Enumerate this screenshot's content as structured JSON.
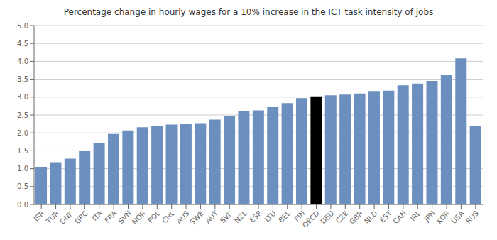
{
  "chart_data": {
    "type": "bar",
    "title": "Percentage change in hourly wages for a 10% increase in the ICT task intensity of jobs",
    "categories": [
      "ISR",
      "TUR",
      "DNK",
      "GRC",
      "ITA",
      "FRA",
      "SVN",
      "NOR",
      "POL",
      "CHL",
      "AUS",
      "SWE",
      "AUT",
      "SVK",
      "NZL",
      "ESP",
      "LTU",
      "BEL",
      "FIN",
      "OECD",
      "DEU",
      "CZE",
      "GBR",
      "NLD",
      "EST",
      "CAN",
      "IRL",
      "JPN",
      "KOR",
      "USA",
      "RUS"
    ],
    "values": [
      1.05,
      1.18,
      1.28,
      1.5,
      1.72,
      1.97,
      2.07,
      2.16,
      2.2,
      2.23,
      2.25,
      2.27,
      2.37,
      2.46,
      2.6,
      2.63,
      2.72,
      2.83,
      2.97,
      3.02,
      3.05,
      3.07,
      3.1,
      3.17,
      3.18,
      3.33,
      3.38,
      3.45,
      3.62,
      4.08,
      2.2
    ],
    "colors": [
      "#6b8fbf",
      "#6b8fbf",
      "#6b8fbf",
      "#6b8fbf",
      "#6b8fbf",
      "#6b8fbf",
      "#6b8fbf",
      "#6b8fbf",
      "#6b8fbf",
      "#6b8fbf",
      "#6b8fbf",
      "#6b8fbf",
      "#6b8fbf",
      "#6b8fbf",
      "#6b8fbf",
      "#6b8fbf",
      "#6b8fbf",
      "#6b8fbf",
      "#6b8fbf",
      "#000000",
      "#6b8fbf",
      "#6b8fbf",
      "#6b8fbf",
      "#6b8fbf",
      "#6b8fbf",
      "#6b8fbf",
      "#6b8fbf",
      "#6b8fbf",
      "#6b8fbf",
      "#6b8fbf",
      "#6b8fbf"
    ],
    "ylim": [
      0.0,
      5.0
    ],
    "yticks": [
      {
        "value": 0,
        "label": "0.0"
      },
      0.5,
      {
        "value": 1,
        "label": "1.0"
      },
      1.5,
      {
        "value": 2,
        "label": "2.0"
      },
      2.5,
      {
        "value": 3,
        "label": "3.0"
      },
      3.5,
      {
        "value": 4,
        "label": "4.0"
      },
      4.5,
      {
        "value": 5,
        "label": "5.0"
      }
    ],
    "grid": true
  }
}
